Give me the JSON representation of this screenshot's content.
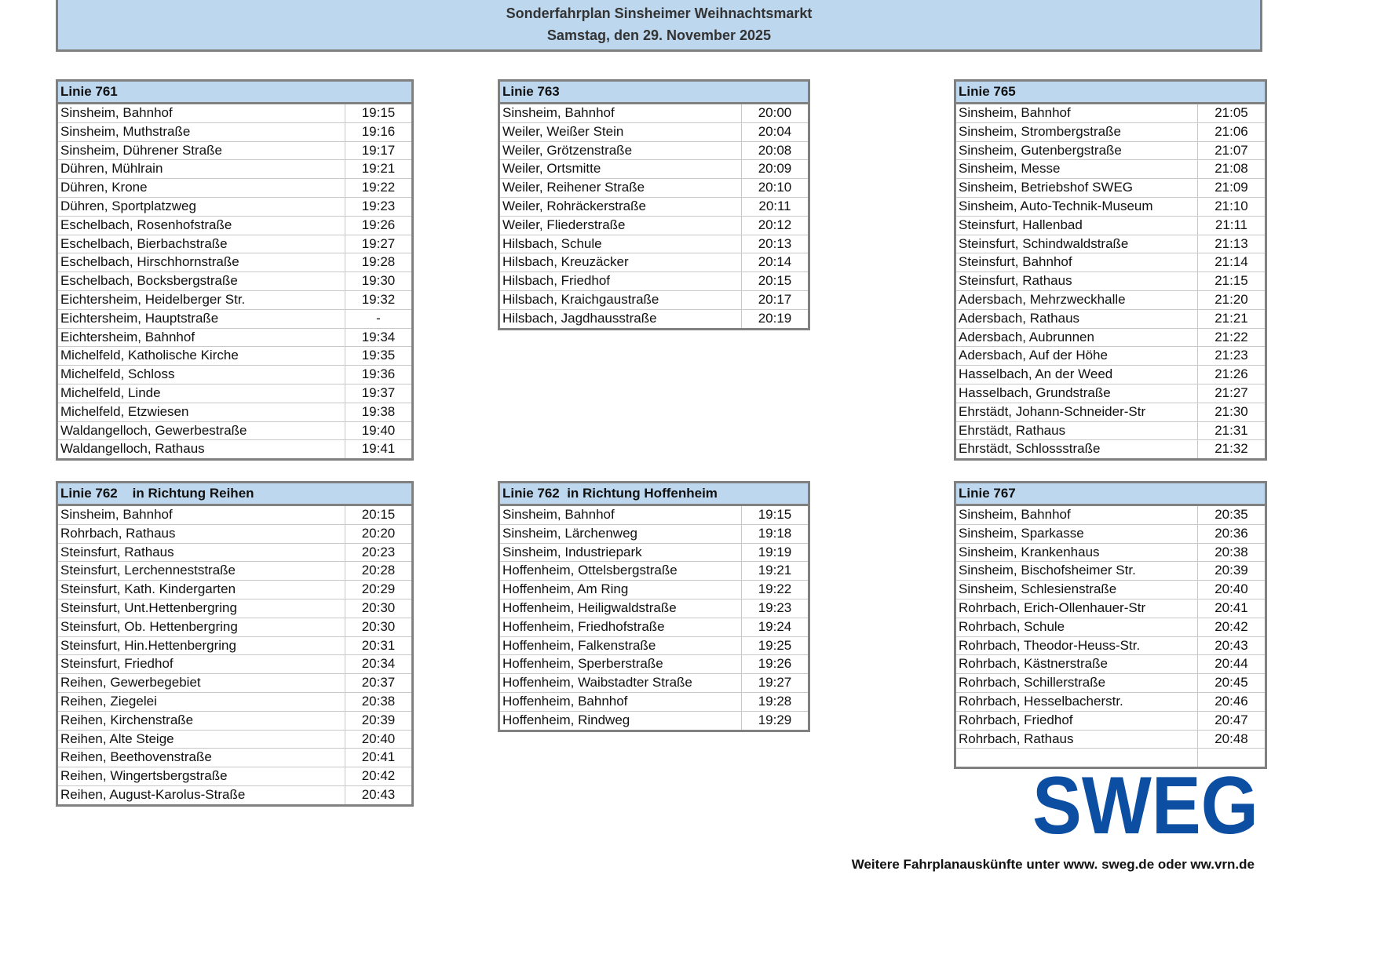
{
  "title": {
    "line1": "Sonderfahrplan Sinsheimer Weihnachtsmarkt",
    "line2": "Samstag, den 29. November 2025"
  },
  "tables": [
    {
      "header": "Linie 761",
      "rows": [
        [
          "Sinsheim, Bahnhof",
          "19:15"
        ],
        [
          "Sinsheim, Muthstraße",
          "19:16"
        ],
        [
          "Sinsheim, Dührener Straße",
          "19:17"
        ],
        [
          "Dühren, Mühlrain",
          "19:21"
        ],
        [
          "Dühren, Krone",
          "19:22"
        ],
        [
          "Dühren, Sportplatzweg",
          "19:23"
        ],
        [
          "Eschelbach, Rosenhofstraße",
          "19:26"
        ],
        [
          "Eschelbach, Bierbachstraße",
          "19:27"
        ],
        [
          "Eschelbach, Hirschhornstraße",
          "19:28"
        ],
        [
          "Eschelbach, Bocksbergstraße",
          "19:30"
        ],
        [
          "Eichtersheim, Heidelberger Str.",
          "19:32"
        ],
        [
          "Eichtersheim, Hauptstraße",
          "-"
        ],
        [
          "Eichtersheim,  Bahnhof",
          "19:34"
        ],
        [
          "Michelfeld, Katholische Kirche",
          "19:35"
        ],
        [
          "Michelfeld, Schloss",
          "19:36"
        ],
        [
          "Michelfeld, Linde",
          "19:37"
        ],
        [
          "Michelfeld, Etzwiesen",
          "19:38"
        ],
        [
          "Waldangelloch, Gewerbestraße",
          "19:40"
        ],
        [
          "Waldangelloch, Rathaus",
          "19:41"
        ]
      ]
    },
    {
      "header": "Linie 763",
      "rows": [
        [
          "Sinsheim, Bahnhof",
          "20:00"
        ],
        [
          "Weiler, Weißer Stein",
          "20:04"
        ],
        [
          "Weiler, Grötzenstraße",
          "20:08"
        ],
        [
          "Weiler, Ortsmitte",
          "20:09"
        ],
        [
          "Weiler, Reihener Straße",
          "20:10"
        ],
        [
          "Weiler, Rohräckerstraße",
          "20:11"
        ],
        [
          "Weiler, Fliederstraße",
          "20:12"
        ],
        [
          "Hilsbach, Schule",
          "20:13"
        ],
        [
          "Hilsbach, Kreuzäcker",
          "20:14"
        ],
        [
          "Hilsbach, Friedhof",
          "20:15"
        ],
        [
          "Hilsbach, Kraichgaustraße",
          "20:17"
        ],
        [
          "Hilsbach, Jagdhausstraße",
          "20:19"
        ]
      ]
    },
    {
      "header": "Linie 765",
      "rows": [
        [
          "Sinsheim, Bahnhof",
          "21:05"
        ],
        [
          "Sinsheim, Strombergstraße",
          "21:06"
        ],
        [
          "Sinsheim, Gutenbergstraße",
          "21:07"
        ],
        [
          "Sinsheim, Messe",
          "21:08"
        ],
        [
          "Sinsheim, Betriebshof SWEG",
          "21:09"
        ],
        [
          "Sinsheim, Auto-Technik-Museum",
          "21:10"
        ],
        [
          "Steinsfurt, Hallenbad",
          "21:11"
        ],
        [
          "Steinsfurt, Schindwaldstraße",
          "21:13"
        ],
        [
          "Steinsfurt, Bahnhof",
          "21:14"
        ],
        [
          "Steinsfurt, Rathaus",
          "21:15"
        ],
        [
          "Adersbach, Mehrzweckhalle",
          "21:20"
        ],
        [
          "Adersbach, Rathaus",
          "21:21"
        ],
        [
          "Adersbach, Aubrunnen",
          "21:22"
        ],
        [
          "Adersbach, Auf der Höhe",
          "21:23"
        ],
        [
          "Hasselbach, An der Weed",
          "21:26"
        ],
        [
          "Hasselbach, Grundstraße",
          "21:27"
        ],
        [
          "Ehrstädt, Johann-Schneider-Str",
          "21:30"
        ],
        [
          "Ehrstädt, Rathaus",
          "21:31"
        ],
        [
          "Ehrstädt, Schlossstraße",
          "21:32"
        ]
      ]
    },
    {
      "header": "Linie 762    in Richtung Reihen",
      "rows": [
        [
          "Sinsheim, Bahnhof",
          "20:15"
        ],
        [
          "Rohrbach, Rathaus",
          "20:20"
        ],
        [
          "Steinsfurt, Rathaus",
          "20:23"
        ],
        [
          "Steinsfurt, Lerchenneststraße",
          "20:28"
        ],
        [
          "Steinsfurt, Kath. Kindergarten",
          "20:29"
        ],
        [
          "Steinsfurt, Unt.Hettenbergring",
          "20:30"
        ],
        [
          "Steinsfurt, Ob. Hettenbergring",
          "20:30"
        ],
        [
          "Steinsfurt, Hin.Hettenbergring",
          "20:31"
        ],
        [
          "Steinsfurt, Friedhof",
          "20:34"
        ],
        [
          "Reihen, Gewerbegebiet",
          "20:37"
        ],
        [
          "Reihen, Ziegelei",
          "20:38"
        ],
        [
          "Reihen, Kirchenstraße",
          "20:39"
        ],
        [
          "Reihen, Alte Steige",
          "20:40"
        ],
        [
          "Reihen, Beethovenstraße",
          "20:41"
        ],
        [
          "Reihen, Wingertsbergstraße",
          "20:42"
        ],
        [
          "Reihen, August-Karolus-Straße",
          "20:43"
        ]
      ]
    },
    {
      "header": "Linie 762  in Richtung Hoffenheim",
      "rows": [
        [
          "Sinsheim, Bahnhof",
          "19:15"
        ],
        [
          "Sinsheim, Lärchenweg",
          "19:18"
        ],
        [
          "Sinsheim, Industriepark",
          "19:19"
        ],
        [
          "Hoffenheim, Ottelsbergstraße",
          "19:21"
        ],
        [
          "Hoffenheim, Am Ring",
          "19:22"
        ],
        [
          "Hoffenheim, Heiligwaldstraße",
          "19:23"
        ],
        [
          "Hoffenheim, Friedhofstraße",
          "19:24"
        ],
        [
          "Hoffenheim, Falkenstraße",
          "19:25"
        ],
        [
          "Hoffenheim, Sperberstraße",
          "19:26"
        ],
        [
          "Hoffenheim, Waibstadter Straße",
          "19:27"
        ],
        [
          "Hoffenheim, Bahnhof",
          "19:28"
        ],
        [
          "Hoffenheim, Rindweg",
          "19:29"
        ]
      ]
    },
    {
      "header": "Linie 767",
      "rows": [
        [
          "Sinsheim, Bahnhof",
          "20:35"
        ],
        [
          "Sinsheim, Sparkasse",
          "20:36"
        ],
        [
          "Sinsheim, Krankenhaus",
          "20:38"
        ],
        [
          "Sinsheim, Bischofsheimer Str.",
          "20:39"
        ],
        [
          "Sinsheim, Schlesienstraße",
          "20:40"
        ],
        [
          "Rohrbach, Erich-Ollenhauer-Str",
          "20:41"
        ],
        [
          "Rohrbach, Schule",
          "20:42"
        ],
        [
          "Rohrbach, Theodor-Heuss-Str.",
          "20:43"
        ],
        [
          "Rohrbach, Kästnerstraße",
          "20:44"
        ],
        [
          "Rohrbach, Schillerstraße",
          "20:45"
        ],
        [
          "Rohrbach, Hesselbacherstr.",
          "20:46"
        ],
        [
          "Rohrbach, Friedhof",
          "20:47"
        ],
        [
          "Rohrbach, Rathaus",
          "20:48"
        ],
        [
          "",
          ""
        ]
      ]
    }
  ],
  "logo": {
    "text": "SWEG",
    "color": "#0b4ea2"
  },
  "colors": {
    "header_bg": "#bdd7ee",
    "border": "#808080"
  },
  "footer": "Weitere Fahrplanauskünfte unter www. sweg.de oder ww.vrn.de"
}
